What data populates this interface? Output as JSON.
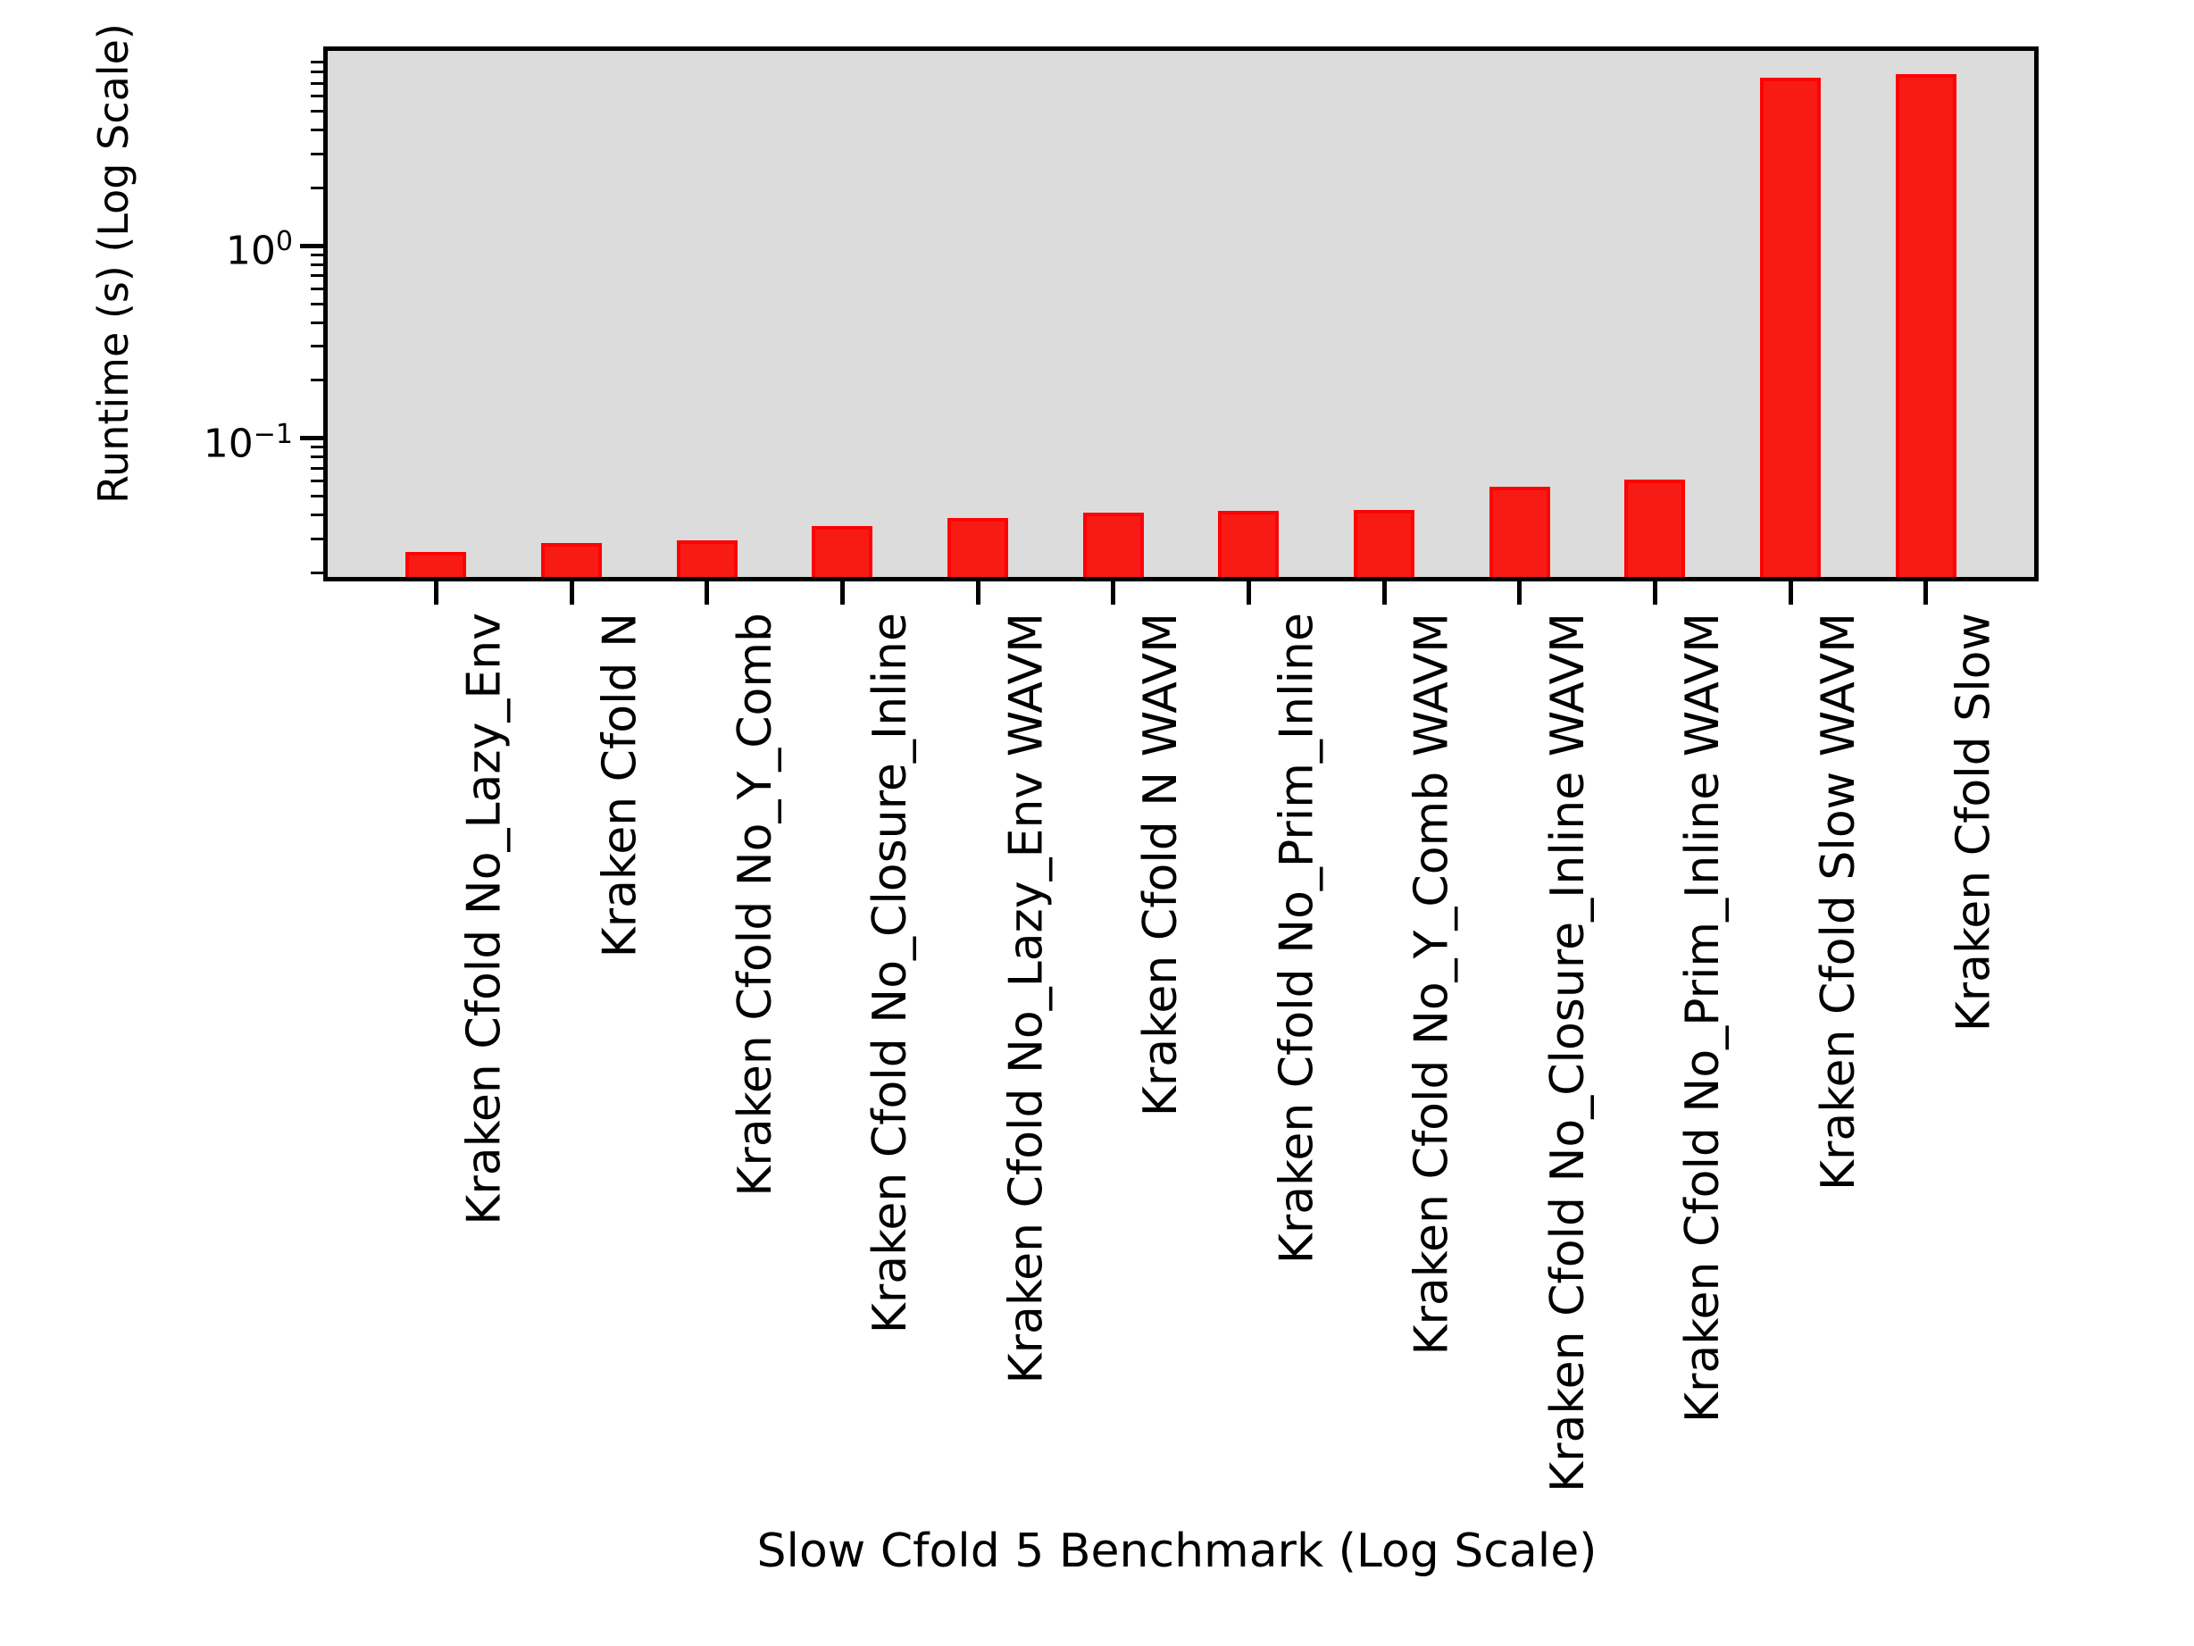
{
  "figure": {
    "background": "#ffffff"
  },
  "chart_data": {
    "type": "bar",
    "title": "",
    "xlabel": "Slow Cfold 5 Benchmark (Log Scale)",
    "ylabel": "Runtime (s) (Log Scale)",
    "categories": [
      "Kraken Cfold No_Lazy_Env",
      "Kraken Cfold N",
      "Kraken Cfold No_Y_Comb",
      "Kraken Cfold No_Closure_Inline",
      "Kraken Cfold No_Lazy_Env WAVM",
      "Kraken Cfold N WAVM",
      "Kraken Cfold No_Prim_Inline",
      "Kraken Cfold No_Y_Comb WAVM",
      "Kraken Cfold No_Closure_Inline WAVM",
      "Kraken Cfold No_Prim_Inline WAVM",
      "Kraken Cfold Slow WAVM",
      "Kraken Cfold Slow"
    ],
    "values": [
      0.0255,
      0.0285,
      0.0295,
      0.035,
      0.0385,
      0.041,
      0.042,
      0.0425,
      0.056,
      0.061,
      7.5,
      7.8
    ],
    "yscale": "log",
    "ylim": [
      0.019,
      10.33
    ],
    "xlim": [
      -0.8,
      11.8
    ],
    "bar_width_frac": 0.45,
    "bar_color": "#f81a15",
    "bar_edge_color": "#fb0404",
    "plot_background": "#dcdcdc",
    "axis_color": "#000000",
    "grid": false,
    "legend": {
      "present": true,
      "position": "upper right",
      "entries": []
    },
    "y_major_ticks": [
      {
        "value": 1,
        "base": "10",
        "exponent": "0"
      },
      {
        "value": 0.1,
        "base": "10",
        "exponent": "−1"
      }
    ],
    "y_minor_ticks": [
      0.02,
      0.03,
      0.04,
      0.05,
      0.06,
      0.07,
      0.08,
      0.09,
      0.2,
      0.3,
      0.4,
      0.5,
      0.6,
      0.7,
      0.8,
      0.9,
      2,
      3,
      4,
      5,
      6,
      7,
      8,
      9
    ]
  }
}
